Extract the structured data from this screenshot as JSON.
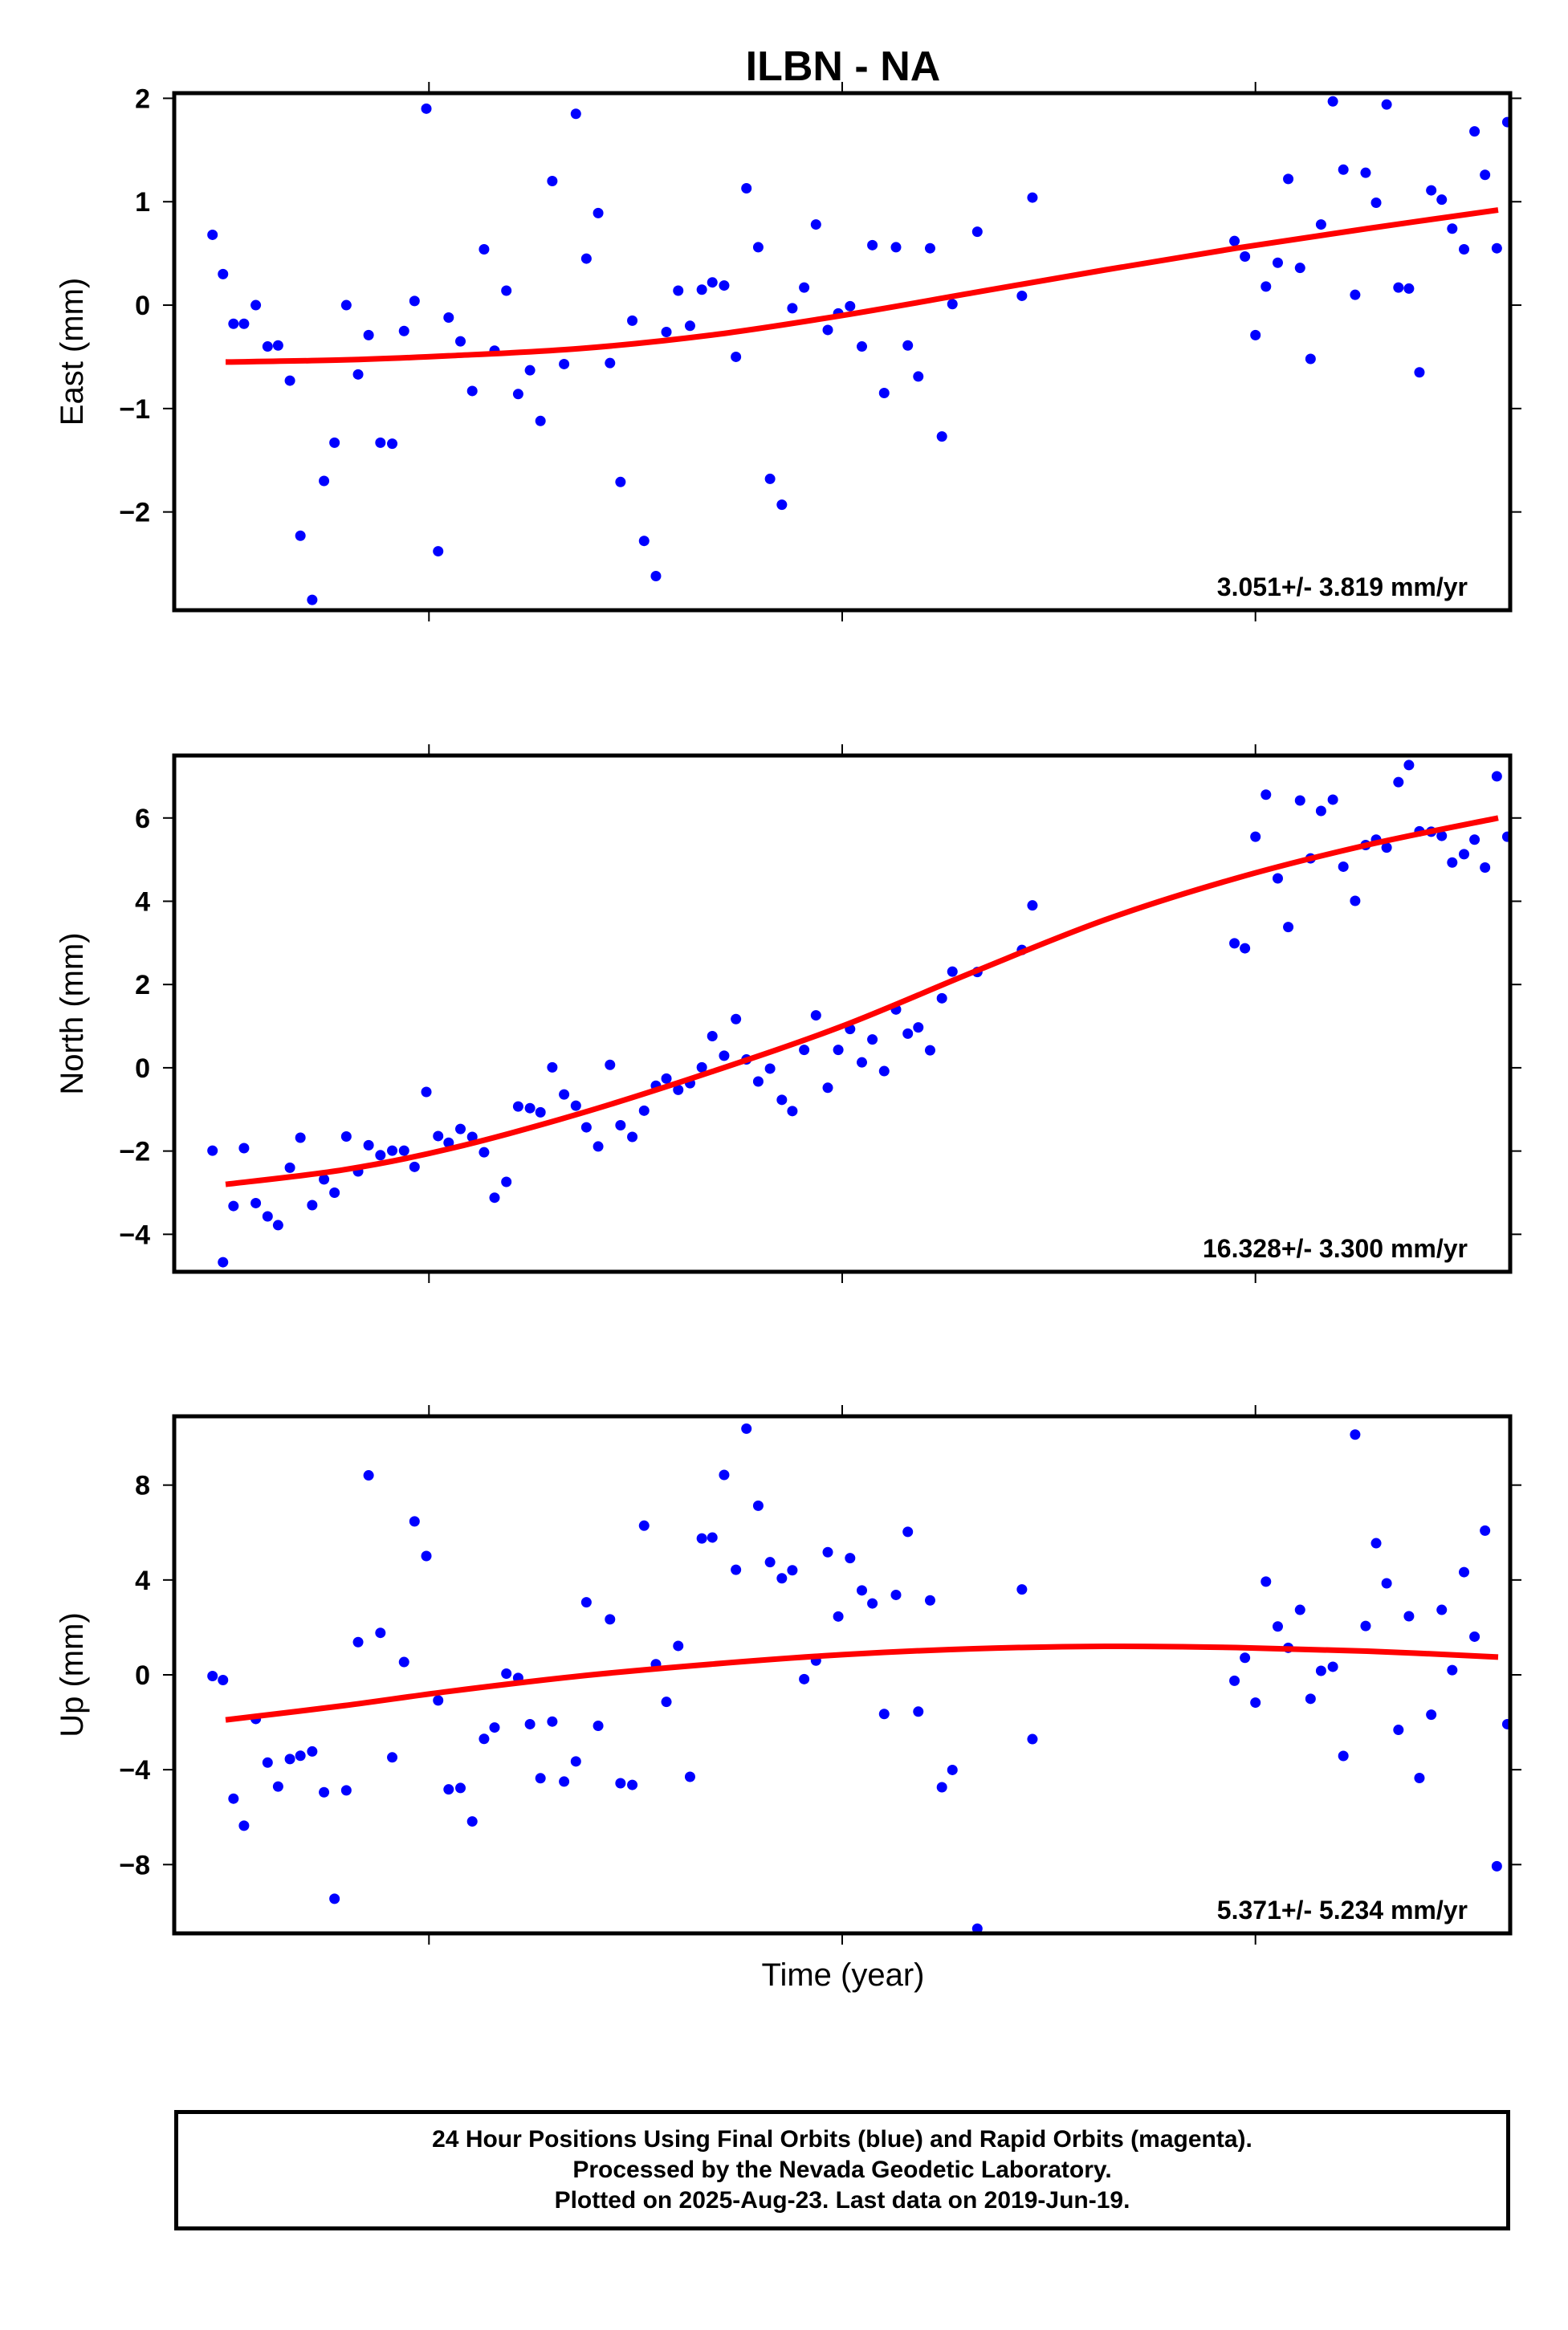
{
  "title": "ILBN - NA",
  "xlabel": "Time (year)",
  "caption": {
    "line1": "24 Hour Positions Using Final Orbits (blue) and Rapid Orbits (magenta).",
    "line2": "Processed by the Nevada Geodetic Laboratory.",
    "line3": "Plotted on 2025-Aug-23. Last data on 2019-Jun-19."
  },
  "colors": {
    "points": "#0000ff",
    "fit": "#ff0000",
    "axes": "#000000"
  },
  "chart_data": [
    {
      "type": "scatter",
      "ylabel": "East (mm)",
      "rate_label": "3.051+/- 3.819 mm/yr",
      "ylim": [
        -2.95,
        2.05
      ],
      "yticks": [
        2,
        1,
        0,
        -1,
        -2
      ],
      "ytick_labels": [
        "2",
        "1",
        "0",
        "−1",
        "−2"
      ],
      "xlim": [
        0,
        1
      ],
      "xticks": [
        0.185,
        0.5,
        0.815
      ],
      "grid": false,
      "points": [
        [
          0.02,
          0.68
        ],
        [
          0.028,
          0.3
        ],
        [
          0.036,
          -0.18
        ],
        [
          0.044,
          -0.18
        ],
        [
          0.053,
          0.0
        ],
        [
          0.062,
          -0.4
        ],
        [
          0.07,
          -0.39
        ],
        [
          0.079,
          -0.73
        ],
        [
          0.087,
          -2.23
        ],
        [
          0.096,
          -2.85
        ],
        [
          0.105,
          -1.7
        ],
        [
          0.113,
          -1.33
        ],
        [
          0.122,
          0.0
        ],
        [
          0.131,
          -0.67
        ],
        [
          0.139,
          -0.29
        ],
        [
          0.148,
          -1.33
        ],
        [
          0.157,
          -1.34
        ],
        [
          0.166,
          -0.25
        ],
        [
          0.174,
          0.04
        ],
        [
          0.183,
          1.9
        ],
        [
          0.192,
          -2.38
        ],
        [
          0.2,
          -0.12
        ],
        [
          0.209,
          -0.35
        ],
        [
          0.218,
          -0.83
        ],
        [
          0.227,
          0.54
        ],
        [
          0.235,
          -0.44
        ],
        [
          0.244,
          0.14
        ],
        [
          0.253,
          -0.86
        ],
        [
          0.262,
          -0.63
        ],
        [
          0.27,
          -1.12
        ],
        [
          0.279,
          1.2
        ],
        [
          0.288,
          -0.57
        ],
        [
          0.297,
          1.85
        ],
        [
          0.305,
          0.45
        ],
        [
          0.314,
          0.89
        ],
        [
          0.323,
          -0.56
        ],
        [
          0.331,
          -1.71
        ],
        [
          0.34,
          -0.15
        ],
        [
          0.349,
          -2.28
        ],
        [
          0.358,
          -2.62
        ],
        [
          0.366,
          -0.26
        ],
        [
          0.375,
          0.14
        ],
        [
          0.384,
          -0.2
        ],
        [
          0.393,
          0.15
        ],
        [
          0.401,
          0.22
        ],
        [
          0.41,
          0.19
        ],
        [
          0.419,
          -0.5
        ],
        [
          0.427,
          1.13
        ],
        [
          0.436,
          0.56
        ],
        [
          0.445,
          -1.68
        ],
        [
          0.454,
          -1.93
        ],
        [
          0.462,
          -0.03
        ],
        [
          0.471,
          0.17
        ],
        [
          0.48,
          0.78
        ],
        [
          0.489,
          -0.24
        ],
        [
          0.497,
          -0.08
        ],
        [
          0.506,
          -0.01
        ],
        [
          0.515,
          -0.4
        ],
        [
          0.523,
          0.58
        ],
        [
          0.532,
          -0.85
        ],
        [
          0.541,
          0.56
        ],
        [
          0.55,
          -0.39
        ],
        [
          0.558,
          -0.69
        ],
        [
          0.567,
          0.55
        ],
        [
          0.576,
          -1.27
        ],
        [
          0.584,
          0.01
        ],
        [
          0.603,
          0.71
        ],
        [
          0.637,
          0.09
        ],
        [
          0.645,
          1.04
        ],
        [
          0.799,
          0.62
        ],
        [
          0.807,
          0.47
        ],
        [
          0.815,
          -0.29
        ],
        [
          0.823,
          0.18
        ],
        [
          0.832,
          0.41
        ],
        [
          0.84,
          1.22
        ],
        [
          0.849,
          0.36
        ],
        [
          0.857,
          -0.52
        ],
        [
          0.865,
          0.78
        ],
        [
          0.874,
          1.97
        ],
        [
          0.882,
          1.31
        ],
        [
          0.891,
          0.1
        ],
        [
          0.899,
          1.28
        ],
        [
          0.907,
          0.99
        ],
        [
          0.915,
          1.94
        ],
        [
          0.924,
          0.17
        ],
        [
          0.932,
          0.16
        ],
        [
          0.94,
          -0.65
        ],
        [
          0.949,
          1.11
        ],
        [
          0.957,
          1.02
        ],
        [
          0.965,
          0.74
        ],
        [
          0.974,
          0.54
        ],
        [
          0.982,
          1.68
        ],
        [
          0.99,
          1.26
        ],
        [
          0.999,
          0.55
        ],
        [
          1.007,
          1.77
        ]
      ],
      "fit": [
        [
          0.03,
          -0.55
        ],
        [
          0.12,
          -0.53
        ],
        [
          0.2,
          -0.49
        ],
        [
          0.3,
          -0.42
        ],
        [
          0.4,
          -0.29
        ],
        [
          0.5,
          -0.1
        ],
        [
          0.6,
          0.12
        ],
        [
          0.7,
          0.34
        ],
        [
          0.8,
          0.55
        ],
        [
          0.9,
          0.74
        ],
        [
          1.0,
          0.92
        ]
      ]
    },
    {
      "type": "scatter",
      "ylabel": "North (mm)",
      "rate_label": "16.328+/- 3.300 mm/yr",
      "ylim": [
        -4.9,
        7.5
      ],
      "yticks": [
        6,
        4,
        2,
        0,
        -2,
        -4
      ],
      "ytick_labels": [
        "6",
        "4",
        "2",
        "0",
        "−2",
        "−4"
      ],
      "xlim": [
        0,
        1
      ],
      "xticks": [
        0.185,
        0.5,
        0.815
      ],
      "grid": false,
      "points": [
        [
          0.02,
          -1.99
        ],
        [
          0.028,
          -4.67
        ],
        [
          0.036,
          -3.32
        ],
        [
          0.044,
          -1.93
        ],
        [
          0.053,
          -3.25
        ],
        [
          0.062,
          -3.57
        ],
        [
          0.07,
          -3.78
        ],
        [
          0.079,
          -2.4
        ],
        [
          0.087,
          -1.68
        ],
        [
          0.096,
          -3.3
        ],
        [
          0.105,
          -2.68
        ],
        [
          0.113,
          -3.0
        ],
        [
          0.122,
          -1.65
        ],
        [
          0.131,
          -2.49
        ],
        [
          0.139,
          -1.86
        ],
        [
          0.148,
          -2.1
        ],
        [
          0.157,
          -1.99
        ],
        [
          0.166,
          -1.99
        ],
        [
          0.174,
          -2.38
        ],
        [
          0.183,
          -0.58
        ],
        [
          0.192,
          -1.64
        ],
        [
          0.2,
          -1.8
        ],
        [
          0.209,
          -1.47
        ],
        [
          0.218,
          -1.66
        ],
        [
          0.227,
          -2.03
        ],
        [
          0.235,
          -3.12
        ],
        [
          0.244,
          -2.74
        ],
        [
          0.253,
          -0.93
        ],
        [
          0.262,
          -0.97
        ],
        [
          0.27,
          -1.07
        ],
        [
          0.279,
          0.01
        ],
        [
          0.288,
          -0.64
        ],
        [
          0.297,
          -0.91
        ],
        [
          0.305,
          -1.43
        ],
        [
          0.314,
          -1.89
        ],
        [
          0.323,
          0.07
        ],
        [
          0.331,
          -1.38
        ],
        [
          0.34,
          -1.66
        ],
        [
          0.349,
          -1.03
        ],
        [
          0.358,
          -0.43
        ],
        [
          0.366,
          -0.26
        ],
        [
          0.375,
          -0.53
        ],
        [
          0.384,
          -0.37
        ],
        [
          0.393,
          0.01
        ],
        [
          0.401,
          0.76
        ],
        [
          0.41,
          0.29
        ],
        [
          0.419,
          1.17
        ],
        [
          0.427,
          0.2
        ],
        [
          0.436,
          -0.33
        ],
        [
          0.445,
          -0.02
        ],
        [
          0.454,
          -0.77
        ],
        [
          0.462,
          -1.04
        ],
        [
          0.471,
          0.43
        ],
        [
          0.48,
          1.26
        ],
        [
          0.489,
          -0.48
        ],
        [
          0.497,
          0.43
        ],
        [
          0.506,
          0.93
        ],
        [
          0.515,
          0.13
        ],
        [
          0.523,
          0.68
        ],
        [
          0.532,
          -0.08
        ],
        [
          0.541,
          1.4
        ],
        [
          0.55,
          0.82
        ],
        [
          0.558,
          0.97
        ],
        [
          0.567,
          0.42
        ],
        [
          0.576,
          1.67
        ],
        [
          0.584,
          2.31
        ],
        [
          0.603,
          2.3
        ],
        [
          0.637,
          2.83
        ],
        [
          0.645,
          3.9
        ],
        [
          0.799,
          2.99
        ],
        [
          0.807,
          2.87
        ],
        [
          0.815,
          5.55
        ],
        [
          0.823,
          6.56
        ],
        [
          0.832,
          4.55
        ],
        [
          0.84,
          3.38
        ],
        [
          0.849,
          6.42
        ],
        [
          0.857,
          5.03
        ],
        [
          0.865,
          6.17
        ],
        [
          0.874,
          6.44
        ],
        [
          0.882,
          4.83
        ],
        [
          0.891,
          4.01
        ],
        [
          0.899,
          5.35
        ],
        [
          0.907,
          5.48
        ],
        [
          0.915,
          5.29
        ],
        [
          0.924,
          6.86
        ],
        [
          0.932,
          7.27
        ],
        [
          0.94,
          5.68
        ],
        [
          0.949,
          5.67
        ],
        [
          0.957,
          5.57
        ],
        [
          0.965,
          4.93
        ],
        [
          0.974,
          5.13
        ],
        [
          0.982,
          5.48
        ],
        [
          0.99,
          4.81
        ],
        [
          0.999,
          7.0
        ],
        [
          1.007,
          5.55
        ]
      ],
      "fit": [
        [
          0.03,
          -2.8
        ],
        [
          0.12,
          -2.45
        ],
        [
          0.2,
          -1.95
        ],
        [
          0.3,
          -1.1
        ],
        [
          0.4,
          -0.1
        ],
        [
          0.5,
          1.0
        ],
        [
          0.6,
          2.3
        ],
        [
          0.7,
          3.55
        ],
        [
          0.8,
          4.55
        ],
        [
          0.9,
          5.35
        ],
        [
          1.0,
          6.0
        ]
      ]
    },
    {
      "type": "scatter",
      "ylabel": "Up (mm)",
      "rate_label": "5.371+/- 5.234 mm/yr",
      "ylim": [
        -10.9,
        10.9
      ],
      "yticks": [
        8,
        4,
        0,
        -4,
        -8
      ],
      "ytick_labels": [
        "8",
        "4",
        "0",
        "−4",
        "−8"
      ],
      "xlim": [
        0,
        1
      ],
      "xticks": [
        0.185,
        0.5,
        0.815
      ],
      "grid": false,
      "points": [
        [
          0.02,
          -0.05
        ],
        [
          0.028,
          -0.22
        ],
        [
          0.036,
          -5.22
        ],
        [
          0.044,
          -6.36
        ],
        [
          0.053,
          -1.86
        ],
        [
          0.062,
          -3.7
        ],
        [
          0.07,
          -4.71
        ],
        [
          0.079,
          -3.55
        ],
        [
          0.087,
          -3.41
        ],
        [
          0.096,
          -3.23
        ],
        [
          0.105,
          -4.95
        ],
        [
          0.113,
          -9.44
        ],
        [
          0.122,
          -4.87
        ],
        [
          0.131,
          1.38
        ],
        [
          0.139,
          8.41
        ],
        [
          0.148,
          1.77
        ],
        [
          0.157,
          -3.48
        ],
        [
          0.166,
          0.54
        ],
        [
          0.174,
          6.47
        ],
        [
          0.183,
          5.01
        ],
        [
          0.192,
          -1.08
        ],
        [
          0.2,
          -4.83
        ],
        [
          0.209,
          -4.77
        ],
        [
          0.218,
          -6.18
        ],
        [
          0.227,
          -2.7
        ],
        [
          0.235,
          -2.22
        ],
        [
          0.244,
          0.05
        ],
        [
          0.253,
          -0.13
        ],
        [
          0.262,
          -2.08
        ],
        [
          0.27,
          -4.36
        ],
        [
          0.279,
          -1.97
        ],
        [
          0.288,
          -4.5
        ],
        [
          0.297,
          -3.65
        ],
        [
          0.305,
          3.06
        ],
        [
          0.314,
          -2.15
        ],
        [
          0.323,
          2.34
        ],
        [
          0.331,
          -4.57
        ],
        [
          0.34,
          -4.64
        ],
        [
          0.349,
          6.29
        ],
        [
          0.358,
          0.45
        ],
        [
          0.366,
          -1.14
        ],
        [
          0.375,
          1.22
        ],
        [
          0.384,
          -4.3
        ],
        [
          0.393,
          5.75
        ],
        [
          0.401,
          5.79
        ],
        [
          0.41,
          8.43
        ],
        [
          0.419,
          4.43
        ],
        [
          0.427,
          10.38
        ],
        [
          0.436,
          7.13
        ],
        [
          0.445,
          4.75
        ],
        [
          0.454,
          4.07
        ],
        [
          0.462,
          4.41
        ],
        [
          0.471,
          -0.18
        ],
        [
          0.48,
          0.6
        ],
        [
          0.489,
          5.17
        ],
        [
          0.497,
          2.46
        ],
        [
          0.506,
          4.92
        ],
        [
          0.515,
          3.56
        ],
        [
          0.523,
          3.01
        ],
        [
          0.532,
          -1.65
        ],
        [
          0.541,
          3.37
        ],
        [
          0.55,
          6.03
        ],
        [
          0.558,
          -1.55
        ],
        [
          0.567,
          3.14
        ],
        [
          0.576,
          -4.74
        ],
        [
          0.584,
          -4.01
        ],
        [
          0.603,
          -10.7
        ],
        [
          0.637,
          3.6
        ],
        [
          0.645,
          -2.71
        ],
        [
          0.799,
          -0.25
        ],
        [
          0.807,
          0.72
        ],
        [
          0.815,
          -1.17
        ],
        [
          0.823,
          3.93
        ],
        [
          0.832,
          2.04
        ],
        [
          0.84,
          1.14
        ],
        [
          0.849,
          2.74
        ],
        [
          0.857,
          -1.01
        ],
        [
          0.865,
          0.17
        ],
        [
          0.874,
          0.34
        ],
        [
          0.882,
          -3.42
        ],
        [
          0.891,
          10.13
        ],
        [
          0.899,
          2.06
        ],
        [
          0.907,
          5.55
        ],
        [
          0.915,
          3.86
        ],
        [
          0.924,
          -2.32
        ],
        [
          0.932,
          2.47
        ],
        [
          0.94,
          -4.35
        ],
        [
          0.949,
          -1.68
        ],
        [
          0.957,
          2.74
        ],
        [
          0.965,
          0.2
        ],
        [
          0.974,
          4.33
        ],
        [
          0.982,
          1.61
        ],
        [
          0.99,
          6.08
        ],
        [
          0.999,
          -8.07
        ],
        [
          1.007,
          -2.08
        ]
      ],
      "fit": [
        [
          0.03,
          -1.9
        ],
        [
          0.12,
          -1.3
        ],
        [
          0.2,
          -0.7
        ],
        [
          0.3,
          -0.05
        ],
        [
          0.4,
          0.45
        ],
        [
          0.5,
          0.85
        ],
        [
          0.6,
          1.1
        ],
        [
          0.7,
          1.2
        ],
        [
          0.8,
          1.15
        ],
        [
          0.9,
          1.0
        ],
        [
          1.0,
          0.75
        ]
      ]
    }
  ]
}
